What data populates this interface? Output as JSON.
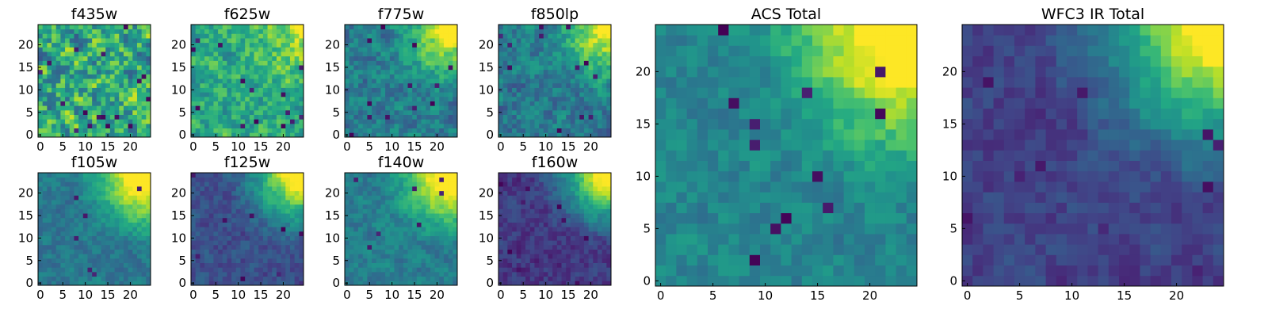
{
  "chart_data": [
    {
      "type": "heatmap",
      "title": "f435w",
      "x_ticks": [
        "0",
        "5",
        "10",
        "15",
        "20"
      ],
      "y_ticks": [
        "0",
        "5",
        "10",
        "15",
        "20"
      ],
      "xlim": [
        0,
        25
      ],
      "ylim": [
        0,
        25
      ],
      "colormap": "viridis",
      "seed": 11,
      "gradient": 0.05,
      "noise": 0.9,
      "base": 0.62,
      "dark_spots": 18
    },
    {
      "type": "heatmap",
      "title": "f625w",
      "x_ticks": [
        "0",
        "5",
        "10",
        "15",
        "20"
      ],
      "y_ticks": [
        "0",
        "5",
        "10",
        "15",
        "20"
      ],
      "xlim": [
        0,
        25
      ],
      "ylim": [
        0,
        25
      ],
      "colormap": "viridis",
      "seed": 23,
      "gradient": 0.35,
      "noise": 0.55,
      "base": 0.6,
      "dark_spots": 14
    },
    {
      "type": "heatmap",
      "title": "f775w",
      "x_ticks": [
        "0",
        "5",
        "10",
        "15",
        "20"
      ],
      "y_ticks": [
        "0",
        "5",
        "10",
        "15",
        "20"
      ],
      "xlim": [
        0,
        25
      ],
      "ylim": [
        0,
        25
      ],
      "colormap": "viridis",
      "seed": 37,
      "gradient": 0.75,
      "noise": 0.45,
      "base": 0.42,
      "dark_spots": 12
    },
    {
      "type": "heatmap",
      "title": "f850lp",
      "x_ticks": [
        "0",
        "5",
        "10",
        "15",
        "20"
      ],
      "y_ticks": [
        "0",
        "5",
        "10",
        "15",
        "20"
      ],
      "xlim": [
        0,
        25
      ],
      "ylim": [
        0,
        25
      ],
      "colormap": "viridis",
      "seed": 41,
      "gradient": 0.75,
      "noise": 0.45,
      "base": 0.4,
      "dark_spots": 12
    },
    {
      "type": "heatmap",
      "title": "f105w",
      "x_ticks": [
        "0",
        "5",
        "10",
        "15",
        "20"
      ],
      "y_ticks": [
        "0",
        "5",
        "10",
        "15",
        "20"
      ],
      "xlim": [
        0,
        25
      ],
      "ylim": [
        0,
        25
      ],
      "colormap": "viridis",
      "seed": 53,
      "gradient": 1.0,
      "noise": 0.28,
      "base": 0.4,
      "dark_spots": 6
    },
    {
      "type": "heatmap",
      "title": "f125w",
      "x_ticks": [
        "0",
        "5",
        "10",
        "15",
        "20"
      ],
      "y_ticks": [
        "0",
        "5",
        "10",
        "15",
        "20"
      ],
      "xlim": [
        0,
        25
      ],
      "ylim": [
        0,
        25
      ],
      "colormap": "viridis",
      "seed": 61,
      "gradient": 1.0,
      "noise": 0.28,
      "base": 0.24,
      "dark_spots": 8
    },
    {
      "type": "heatmap",
      "title": "f140w",
      "x_ticks": [
        "0",
        "5",
        "10",
        "15",
        "20"
      ],
      "y_ticks": [
        "0",
        "5",
        "10",
        "15",
        "20"
      ],
      "xlim": [
        0,
        25
      ],
      "ylim": [
        0,
        25
      ],
      "colormap": "viridis",
      "seed": 71,
      "gradient": 1.0,
      "noise": 0.3,
      "base": 0.42,
      "dark_spots": 7
    },
    {
      "type": "heatmap",
      "title": "f160w",
      "x_ticks": [
        "0",
        "5",
        "10",
        "15",
        "20"
      ],
      "y_ticks": [
        "0",
        "5",
        "10",
        "15",
        "20"
      ],
      "xlim": [
        0,
        25
      ],
      "ylim": [
        0,
        25
      ],
      "colormap": "viridis",
      "seed": 83,
      "gradient": 1.05,
      "noise": 0.28,
      "base": 0.16,
      "dark_spots": 10
    },
    {
      "type": "heatmap",
      "title": "ACS Total",
      "x_ticks": [
        "0",
        "5",
        "10",
        "15",
        "20"
      ],
      "y_ticks": [
        "0",
        "5",
        "10",
        "15",
        "20"
      ],
      "xlim": [
        0,
        25
      ],
      "ylim": [
        0,
        25
      ],
      "colormap": "viridis",
      "seed": 97,
      "gradient": 0.95,
      "noise": 0.3,
      "base": 0.45,
      "dark_spots": 12
    },
    {
      "type": "heatmap",
      "title": "WFC3 IR Total",
      "x_ticks": [
        "0",
        "5",
        "10",
        "15",
        "20"
      ],
      "y_ticks": [
        "0",
        "5",
        "10",
        "15",
        "20"
      ],
      "xlim": [
        0,
        25
      ],
      "ylim": [
        0,
        25
      ],
      "colormap": "viridis",
      "seed": 101,
      "gradient": 1.05,
      "noise": 0.25,
      "base": 0.2,
      "dark_spots": 10
    }
  ]
}
